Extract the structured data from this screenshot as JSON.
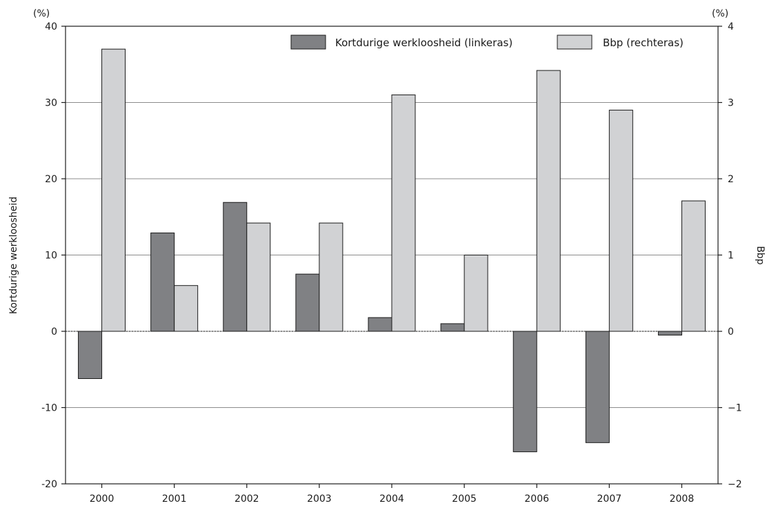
{
  "chart_data": {
    "type": "bar",
    "categories": [
      "2000",
      "2001",
      "2002",
      "2003",
      "2004",
      "2005",
      "2006",
      "2007",
      "2008"
    ],
    "series": [
      {
        "name": "Kortdurige werkloosheid (linkeras)",
        "axis": "left",
        "color": "#808184",
        "values": [
          -6.2,
          12.9,
          16.9,
          7.5,
          1.8,
          1.0,
          -15.8,
          -14.6,
          -0.5
        ]
      },
      {
        "name": "Bbp (rechteras)",
        "axis": "right",
        "color": "#d1d2d4",
        "values": [
          3.7,
          0.6,
          1.42,
          1.42,
          3.1,
          1.0,
          3.42,
          2.9,
          1.71
        ]
      }
    ],
    "left_axis": {
      "label": "Kortdurige werkloosheid",
      "unit": "(%)",
      "ylim": [
        -20,
        40
      ],
      "ticks": [
        "-20",
        "-10",
        "0",
        "10",
        "20",
        "30",
        "40"
      ]
    },
    "right_axis": {
      "label": "Bbp",
      "unit": "(%)",
      "ylim": [
        -2,
        4
      ],
      "ticks": [
        "−2",
        "−1",
        "0",
        "1",
        "2",
        "3",
        "4"
      ]
    },
    "grid": true,
    "legend_position": "top-right"
  }
}
